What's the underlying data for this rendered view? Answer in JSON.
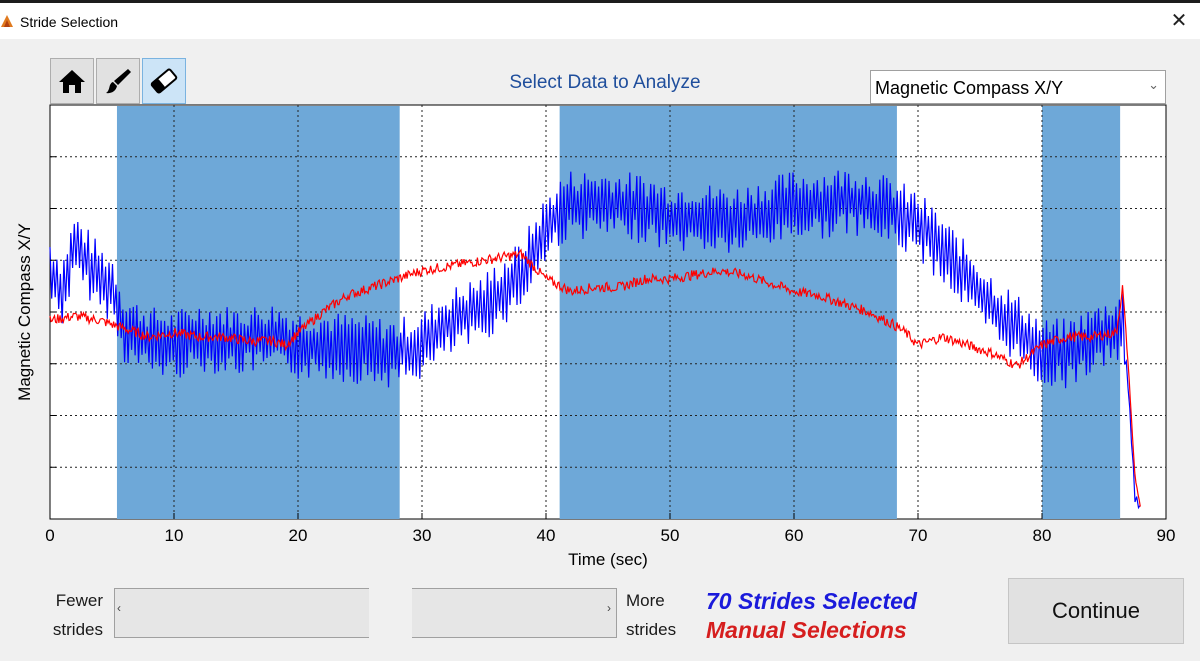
{
  "window": {
    "title": "Stride Selection",
    "close_label": "✕"
  },
  "toolbar": {
    "tools": [
      "home-icon",
      "brush-icon",
      "eraser-icon"
    ],
    "active_tool": "eraser-icon"
  },
  "heading": "Select Data to Analyze",
  "dropdown": {
    "value": "Magnetic Compass X/Y"
  },
  "chart_data": {
    "type": "line",
    "xlabel": "Time (sec)",
    "ylabel": "Magnetic Compass X/Y",
    "xlim": [
      0,
      90
    ],
    "x_ticks": [
      0,
      10,
      20,
      30,
      40,
      50,
      60,
      70,
      80,
      90
    ],
    "y_tick_labels": "none",
    "grid": true,
    "selected_regions": [
      [
        5.4,
        28.2
      ],
      [
        41.1,
        68.3
      ],
      [
        80.0,
        86.3
      ]
    ],
    "region_color": "#6ea8d8",
    "series": [
      {
        "color": "#0000ff",
        "x": [
          0,
          1,
          2,
          3,
          4,
          5,
          6,
          8,
          10,
          12,
          15,
          18,
          20,
          22,
          25,
          28,
          30,
          32,
          35,
          38,
          40,
          41,
          42,
          45,
          48,
          50,
          52,
          55,
          58,
          60,
          62,
          65,
          67,
          68,
          70,
          72,
          74,
          76,
          78,
          80,
          82,
          84,
          86,
          86.5,
          87,
          87.5,
          88
        ],
        "y": [
          0.6,
          0.55,
          0.66,
          0.62,
          0.58,
          0.56,
          0.46,
          0.43,
          0.42,
          0.44,
          0.43,
          0.44,
          0.42,
          0.42,
          0.41,
          0.4,
          0.42,
          0.47,
          0.51,
          0.59,
          0.7,
          0.74,
          0.76,
          0.76,
          0.75,
          0.73,
          0.73,
          0.72,
          0.74,
          0.76,
          0.76,
          0.77,
          0.75,
          0.74,
          0.71,
          0.65,
          0.58,
          0.51,
          0.46,
          0.4,
          0.4,
          0.43,
          0.46,
          0.48,
          0.3,
          0.05,
          0.02
        ]
      },
      {
        "color": "#ff0000",
        "x": [
          0,
          2,
          4,
          6,
          8,
          10,
          12,
          14,
          16,
          18,
          19,
          20,
          22,
          24,
          26,
          28,
          30,
          32,
          34,
          36,
          38,
          40,
          42,
          44,
          46,
          48,
          50,
          52,
          54,
          56,
          58,
          60,
          62,
          64,
          66,
          68,
          69,
          70,
          72,
          74,
          76,
          78,
          80,
          82,
          84,
          86,
          86.5,
          87,
          87.5,
          88
        ],
        "y": [
          0.48,
          0.49,
          0.48,
          0.46,
          0.44,
          0.45,
          0.44,
          0.44,
          0.43,
          0.43,
          0.42,
          0.45,
          0.5,
          0.54,
          0.56,
          0.58,
          0.6,
          0.61,
          0.62,
          0.63,
          0.64,
          0.58,
          0.55,
          0.56,
          0.56,
          0.58,
          0.58,
          0.59,
          0.6,
          0.59,
          0.57,
          0.55,
          0.54,
          0.52,
          0.5,
          0.47,
          0.45,
          0.42,
          0.44,
          0.42,
          0.4,
          0.37,
          0.42,
          0.44,
          0.44,
          0.45,
          0.56,
          0.35,
          0.1,
          0.02
        ]
      }
    ]
  },
  "slider": {
    "left_label_1": "Fewer",
    "left_label_2": "strides",
    "right_label_1": "More",
    "right_label_2": "strides",
    "position": 0.55
  },
  "status": {
    "selected": "70 Strides Selected",
    "manual": "Manual Selections"
  },
  "continue_label": "Continue"
}
